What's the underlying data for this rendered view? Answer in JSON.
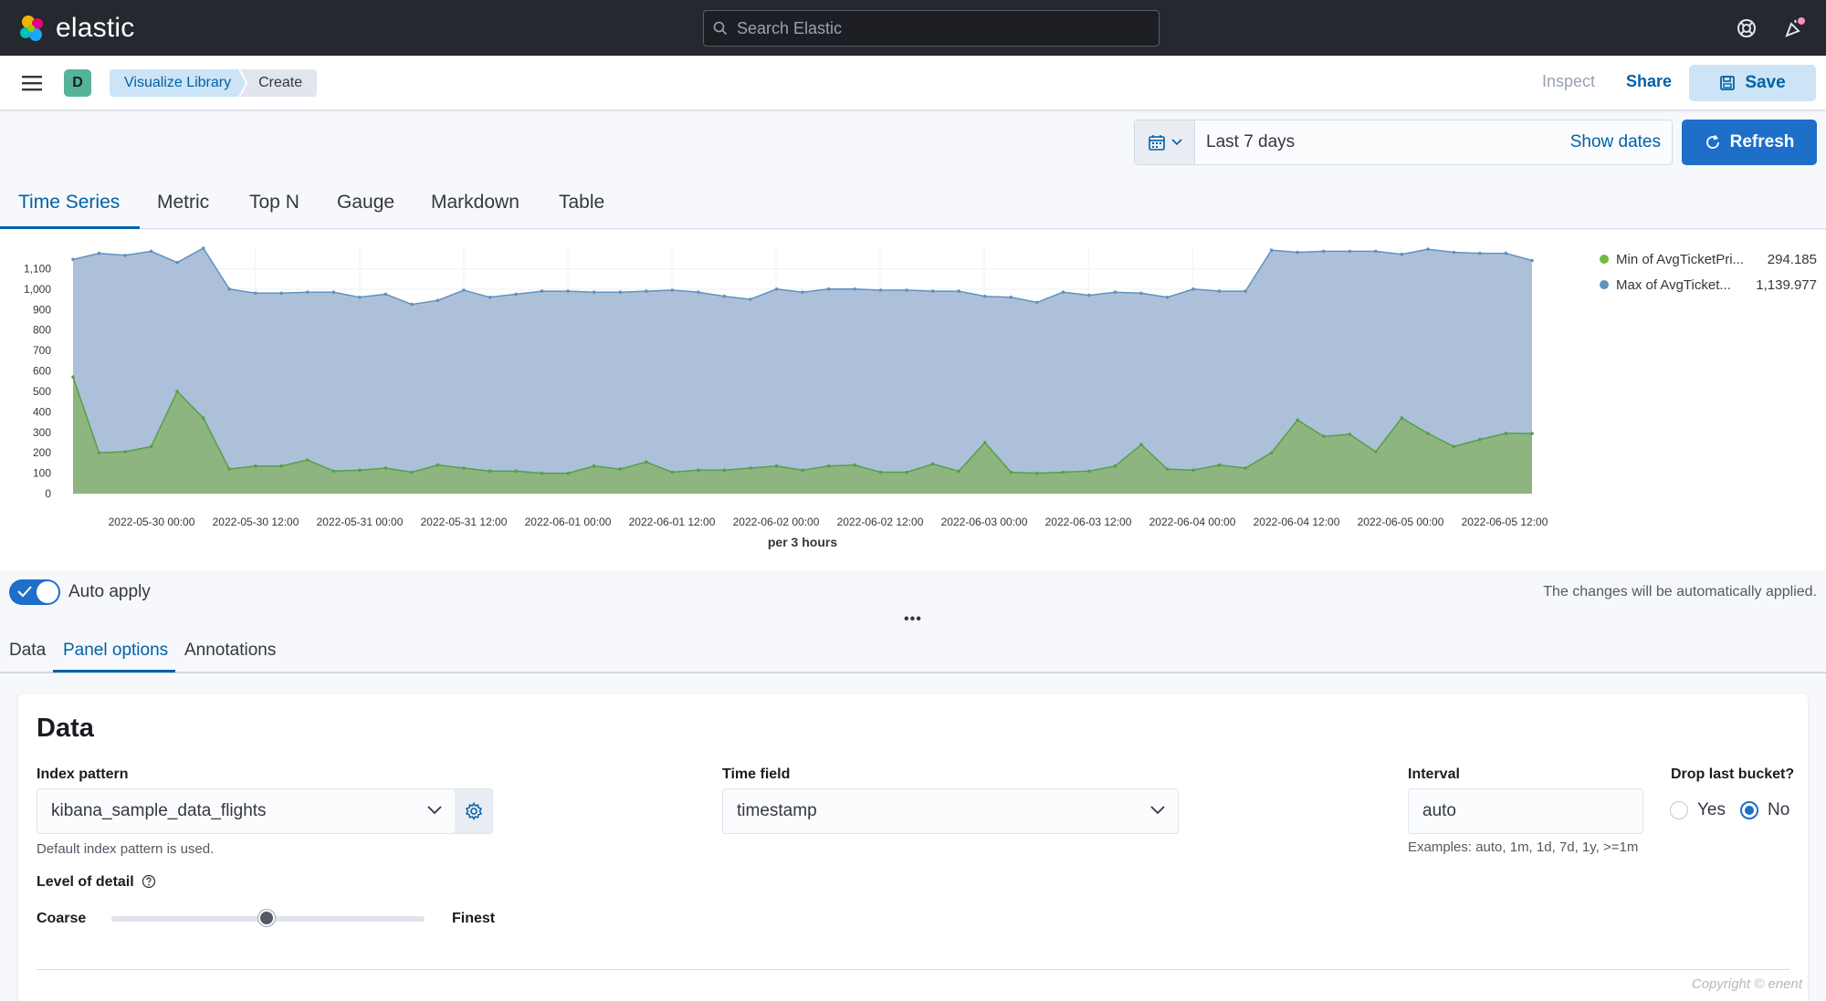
{
  "header": {
    "brand": "elastic",
    "search_placeholder": "Search Elastic"
  },
  "subbar": {
    "space_initial": "D",
    "breadcrumbs": [
      "Visualize Library",
      "Create"
    ],
    "inspect": "Inspect",
    "share": "Share",
    "save": "Save"
  },
  "timepicker": {
    "range": "Last 7 days",
    "show_dates": "Show dates",
    "refresh": "Refresh"
  },
  "viz_tabs": [
    "Time Series",
    "Metric",
    "Top N",
    "Gauge",
    "Markdown",
    "Table"
  ],
  "chart_data": {
    "type": "area",
    "xlabel": "per 3 hours",
    "x_ticks": [
      "2022-05-30 00:00",
      "2022-05-30 12:00",
      "2022-05-31 00:00",
      "2022-05-31 12:00",
      "2022-06-01 00:00",
      "2022-06-01 12:00",
      "2022-06-02 00:00",
      "2022-06-02 12:00",
      "2022-06-03 00:00",
      "2022-06-03 12:00",
      "2022-06-04 00:00",
      "2022-06-04 12:00",
      "2022-06-05 00:00",
      "2022-06-05 12:00"
    ],
    "y_ticks": [
      "0",
      "100",
      "200",
      "300",
      "400",
      "500",
      "600",
      "700",
      "800",
      "900",
      "1,000",
      "1,100"
    ],
    "ylim": [
      0,
      1200
    ],
    "grid": true,
    "legend_position": "right",
    "series": [
      {
        "name": "Min of AvgTicketPri...",
        "legend_value": "294.185",
        "color": "#54b399",
        "values": [
          570,
          200,
          205,
          230,
          500,
          370,
          120,
          135,
          135,
          165,
          110,
          115,
          125,
          105,
          140,
          125,
          110,
          110,
          100,
          100,
          135,
          120,
          155,
          105,
          115,
          115,
          125,
          135,
          115,
          135,
          140,
          105,
          105,
          145,
          110,
          250,
          105,
          100,
          105,
          110,
          135,
          240,
          120,
          115,
          140,
          125,
          200,
          360,
          280,
          290,
          205,
          370,
          295,
          230,
          265,
          295,
          294
        ]
      },
      {
        "name": "Max of AvgTicket...",
        "legend_value": "1,139.977",
        "color": "#6092c0",
        "values": [
          1145,
          1175,
          1165,
          1185,
          1130,
          1200,
          1000,
          980,
          980,
          985,
          985,
          960,
          975,
          925,
          945,
          995,
          960,
          975,
          990,
          990,
          985,
          985,
          990,
          995,
          985,
          965,
          950,
          1000,
          985,
          1000,
          1000,
          995,
          995,
          990,
          990,
          965,
          960,
          935,
          985,
          970,
          985,
          980,
          960,
          1000,
          990,
          990,
          1190,
          1180,
          1185,
          1185,
          1185,
          1170,
          1195,
          1180,
          1175,
          1175,
          1140
        ]
      }
    ]
  },
  "auto_apply": {
    "label": "Auto apply",
    "note": "The changes will be automatically applied.",
    "resize_handle": "•••"
  },
  "editor_tabs": [
    "Data",
    "Panel options",
    "Annotations"
  ],
  "panel": {
    "title": "Data",
    "index_pattern_label": "Index pattern",
    "index_pattern_value": "kibana_sample_data_flights",
    "index_pattern_help": "Default index pattern is used.",
    "time_field_label": "Time field",
    "time_field_value": "timestamp",
    "interval_label": "Interval",
    "interval_value": "auto",
    "interval_help": "Examples: auto, 1m, 1d, 7d, 1y, >=1m",
    "drop_last_label": "Drop last bucket?",
    "yes": "Yes",
    "no": "No",
    "level_label": "Level of detail",
    "coarse": "Coarse",
    "finest": "Finest",
    "level_of_detail_fraction": 0.5
  },
  "watermark": "Copyright © enent"
}
